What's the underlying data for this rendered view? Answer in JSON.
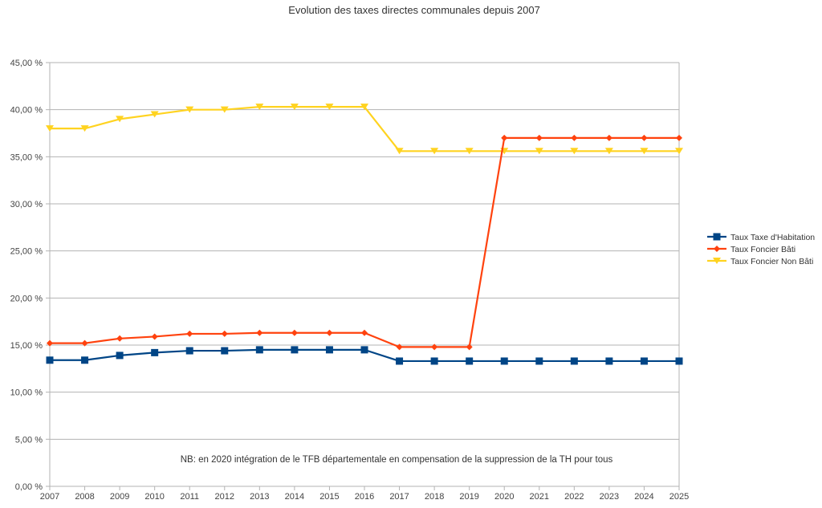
{
  "chart_data": {
    "type": "line",
    "title": "Evolution des taxes directes communales depuis 2007",
    "xlabel": "",
    "ylabel": "",
    "ylim": [
      0,
      45
    ],
    "yticks": [
      0,
      5,
      10,
      15,
      20,
      25,
      30,
      35,
      40,
      45
    ],
    "ytick_labels": [
      "0,00 %",
      "5,00 %",
      "10,00 %",
      "15,00 %",
      "20,00 %",
      "25,00 %",
      "30,00 %",
      "35,00 %",
      "40,00 %",
      "45,00 %"
    ],
    "grid": true,
    "legend_position": "right",
    "x": [
      "2007",
      "2008",
      "2009",
      "2010",
      "2011",
      "2012",
      "2013",
      "2014",
      "2015",
      "2016",
      "2017",
      "2018",
      "2019",
      "2020",
      "2021",
      "2022",
      "2023",
      "2024",
      "2025"
    ],
    "series": [
      {
        "name": "Taux Taxe d'Habitation",
        "color": "#004586",
        "marker": "square",
        "values": [
          13.4,
          13.4,
          13.9,
          14.2,
          14.4,
          14.4,
          14.5,
          14.5,
          14.5,
          14.5,
          13.3,
          13.3,
          13.3,
          13.3,
          13.3,
          13.3,
          13.3,
          13.3,
          13.3
        ]
      },
      {
        "name": "Taux Foncier Bâti",
        "color": "#ff420e",
        "marker": "diamond",
        "values": [
          15.2,
          15.2,
          15.7,
          15.9,
          16.2,
          16.2,
          16.3,
          16.3,
          16.3,
          16.3,
          14.8,
          14.8,
          14.8,
          37.0,
          37.0,
          37.0,
          37.0,
          37.0,
          37.0
        ]
      },
      {
        "name": "Taux Foncier Non Bâti",
        "color": "#ffd320",
        "marker": "triangle-down",
        "values": [
          38.0,
          38.0,
          39.0,
          39.5,
          40.0,
          40.0,
          40.3,
          40.3,
          40.3,
          40.3,
          35.6,
          35.6,
          35.6,
          35.6,
          35.6,
          35.6,
          35.6,
          35.6,
          35.6
        ]
      }
    ],
    "annotations": [
      "NB: en 2020 intégration de le TFB départementale en compensation de la suppression de la TH pour tous"
    ]
  }
}
